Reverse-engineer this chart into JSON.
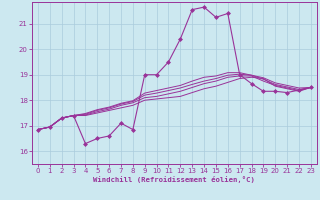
{
  "xlabel": "Windchill (Refroidissement éolien,°C)",
  "xlim": [
    -0.5,
    23.5
  ],
  "ylim": [
    15.5,
    21.85
  ],
  "yticks": [
    16,
    17,
    18,
    19,
    20,
    21
  ],
  "xticks": [
    0,
    1,
    2,
    3,
    4,
    5,
    6,
    7,
    8,
    9,
    10,
    11,
    12,
    13,
    14,
    15,
    16,
    17,
    18,
    19,
    20,
    21,
    22,
    23
  ],
  "bg_color": "#cce8f0",
  "grid_color": "#aaccdd",
  "line_color": "#993399",
  "lines": [
    [
      16.85,
      16.95,
      17.3,
      17.4,
      16.3,
      16.5,
      16.6,
      17.1,
      16.85,
      19.0,
      19.0,
      19.5,
      20.4,
      21.55,
      21.65,
      21.25,
      21.4,
      19.0,
      18.65,
      18.35,
      18.35,
      18.3,
      18.4,
      18.5
    ],
    [
      16.85,
      16.95,
      17.3,
      17.4,
      17.4,
      17.5,
      17.6,
      17.7,
      17.8,
      18.0,
      18.05,
      18.1,
      18.15,
      18.3,
      18.45,
      18.55,
      18.7,
      18.85,
      18.9,
      18.85,
      18.55,
      18.45,
      18.35,
      18.5
    ],
    [
      16.85,
      16.95,
      17.3,
      17.4,
      17.42,
      17.55,
      17.65,
      17.8,
      17.9,
      18.1,
      18.15,
      18.25,
      18.35,
      18.5,
      18.65,
      18.75,
      18.9,
      18.95,
      18.95,
      18.75,
      18.58,
      18.48,
      18.38,
      18.5
    ],
    [
      16.85,
      16.95,
      17.3,
      17.4,
      17.45,
      17.6,
      17.7,
      17.85,
      17.95,
      18.2,
      18.28,
      18.38,
      18.48,
      18.62,
      18.75,
      18.85,
      18.98,
      19.02,
      18.98,
      18.82,
      18.62,
      18.52,
      18.42,
      18.5
    ],
    [
      16.85,
      16.95,
      17.3,
      17.4,
      17.48,
      17.63,
      17.73,
      17.88,
      17.98,
      18.28,
      18.38,
      18.48,
      18.58,
      18.75,
      18.9,
      18.95,
      19.08,
      19.08,
      18.98,
      18.88,
      18.68,
      18.58,
      18.48,
      18.5
    ]
  ]
}
